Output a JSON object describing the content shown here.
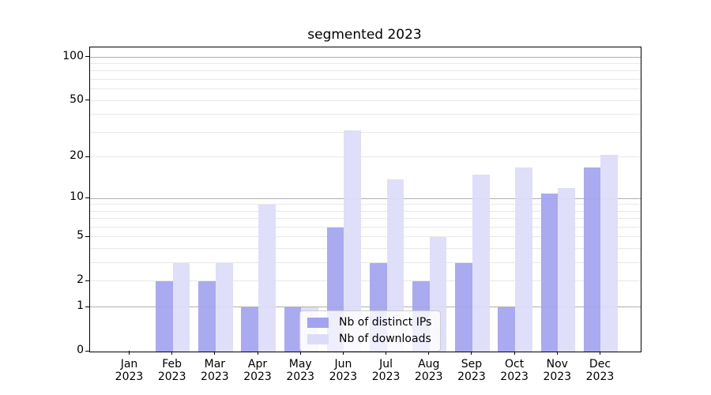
{
  "title": "segmented 2023",
  "chart_data": {
    "type": "bar",
    "title": "segmented 2023",
    "categories": [
      "Jan 2023",
      "Feb 2023",
      "Mar 2023",
      "Apr 2023",
      "May 2023",
      "Jun 2023",
      "Jul 2023",
      "Aug 2023",
      "Sep 2023",
      "Oct 2023",
      "Nov 2023",
      "Dec 2023"
    ],
    "series": [
      {
        "name": "Nb of distinct IPs",
        "color": "#a3a3f0",
        "values": [
          0,
          2,
          2,
          1,
          1,
          6,
          3,
          2,
          3,
          1,
          11,
          17
        ]
      },
      {
        "name": "Nb of downloads",
        "color": "#dcdcf9",
        "values": [
          0,
          3,
          3,
          9,
          1,
          31,
          14,
          5,
          15,
          17,
          12,
          21
        ]
      }
    ],
    "xlabel": "",
    "ylabel": "",
    "y_scale": "log1p",
    "ylim": [
      0,
      117
    ],
    "y_ticks": [
      0,
      1,
      2,
      5,
      10,
      20,
      50,
      100
    ],
    "y_major_gridlines": [
      1,
      10,
      100
    ],
    "y_minor_gridlines": [
      2,
      3,
      4,
      5,
      6,
      7,
      8,
      9,
      20,
      30,
      40,
      50,
      60,
      70,
      80,
      90
    ],
    "grid": "horizontal",
    "legend_position": "lower center inside axes"
  },
  "legend": {
    "items": [
      {
        "label": "Nb of distinct IPs",
        "color": "#a3a3f0"
      },
      {
        "label": "Nb of downloads",
        "color": "#dcdcf9"
      }
    ]
  },
  "colors": {
    "background": "#ffffff",
    "spine": "#000000",
    "major_grid": "#b0b0b0",
    "minor_grid": "#e8e8e8",
    "text": "#000000"
  }
}
